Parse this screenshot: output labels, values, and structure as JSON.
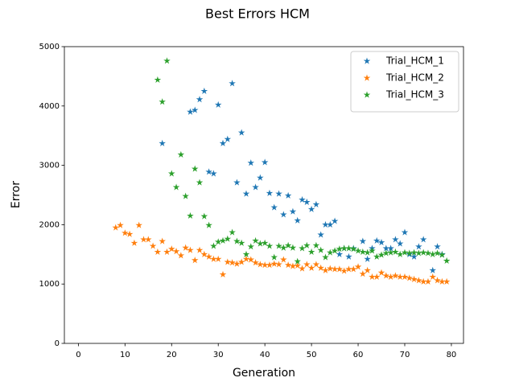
{
  "chart_data": {
    "type": "scatter",
    "title": "Best Errors HCM",
    "x_label": "Generation",
    "y_label": "Error",
    "xlim": [
      -3,
      82.6
    ],
    "ylim": [
      0,
      5000
    ],
    "xticks": [
      0,
      10,
      20,
      30,
      40,
      50,
      60,
      70,
      80
    ],
    "yticks": [
      0,
      1000,
      2000,
      3000,
      4000,
      5000
    ],
    "legend": "upper right",
    "marker": "star",
    "series": [
      {
        "name": "Trial_HCM_1",
        "color": "#1f77b4",
        "x": [
          18,
          24,
          25,
          26,
          27,
          28,
          29,
          30,
          31,
          32,
          33,
          34,
          35,
          36,
          37,
          38,
          39,
          40,
          41,
          42,
          43,
          44,
          45,
          46,
          47,
          48,
          49,
          50,
          51,
          52,
          53,
          54,
          55,
          56,
          57,
          58,
          59,
          61,
          62,
          63,
          64,
          65,
          66,
          67,
          68,
          69,
          70,
          71,
          72,
          73,
          74,
          76,
          77,
          78
        ],
        "values": [
          3370,
          3900,
          3930,
          4110,
          4250,
          2890,
          2860,
          4020,
          3370,
          3440,
          4380,
          2710,
          3550,
          2520,
          3040,
          2630,
          2790,
          3050,
          2530,
          2290,
          2520,
          2170,
          2490,
          2220,
          2070,
          2420,
          2380,
          2260,
          2340,
          1830,
          2000,
          2000,
          2060,
          1500,
          1600,
          1460,
          1600,
          1720,
          1420,
          1600,
          1730,
          1700,
          1600,
          1600,
          1750,
          1680,
          1870,
          1500,
          1460,
          1630,
          1750,
          1230,
          1630,
          1500
        ]
      },
      {
        "name": "Trial_HCM_2",
        "color": "#ff7f0e",
        "x": [
          8,
          9,
          10,
          11,
          12,
          13,
          14,
          15,
          16,
          17,
          18,
          19,
          20,
          21,
          22,
          23,
          24,
          25,
          26,
          27,
          28,
          29,
          30,
          31,
          32,
          33,
          34,
          35,
          36,
          37,
          38,
          39,
          40,
          41,
          42,
          43,
          44,
          45,
          46,
          47,
          48,
          49,
          50,
          51,
          52,
          53,
          54,
          55,
          56,
          57,
          58,
          59,
          60,
          61,
          62,
          63,
          64,
          65,
          66,
          67,
          68,
          69,
          70,
          71,
          72,
          73,
          74,
          75,
          76,
          77,
          78,
          79
        ],
        "values": [
          1950,
          1990,
          1860,
          1840,
          1690,
          1990,
          1750,
          1750,
          1640,
          1540,
          1720,
          1540,
          1590,
          1550,
          1480,
          1610,
          1570,
          1400,
          1570,
          1500,
          1460,
          1420,
          1420,
          1160,
          1370,
          1360,
          1340,
          1370,
          1420,
          1410,
          1360,
          1330,
          1320,
          1320,
          1340,
          1330,
          1410,
          1320,
          1300,
          1310,
          1260,
          1330,
          1270,
          1330,
          1270,
          1230,
          1260,
          1250,
          1250,
          1220,
          1250,
          1250,
          1290,
          1170,
          1230,
          1120,
          1120,
          1190,
          1140,
          1120,
          1140,
          1120,
          1120,
          1100,
          1080,
          1060,
          1040,
          1040,
          1120,
          1060,
          1040,
          1040
        ]
      },
      {
        "name": "Trial_HCM_3",
        "color": "#2ca02c",
        "x": [
          17,
          18,
          19,
          20,
          21,
          22,
          23,
          24,
          25,
          26,
          27,
          28,
          29,
          30,
          31,
          32,
          33,
          34,
          35,
          36,
          37,
          38,
          39,
          40,
          41,
          42,
          43,
          44,
          45,
          46,
          47,
          48,
          49,
          50,
          51,
          52,
          53,
          54,
          55,
          56,
          57,
          58,
          59,
          60,
          61,
          62,
          63,
          64,
          65,
          66,
          67,
          68,
          69,
          70,
          71,
          72,
          73,
          74,
          75,
          76,
          77,
          78,
          79
        ],
        "values": [
          4440,
          4070,
          4760,
          2860,
          2630,
          3180,
          2480,
          2150,
          2940,
          2710,
          2140,
          1990,
          1640,
          1710,
          1730,
          1760,
          1870,
          1720,
          1690,
          1500,
          1630,
          1730,
          1680,
          1690,
          1640,
          1450,
          1640,
          1610,
          1650,
          1610,
          1380,
          1600,
          1650,
          1540,
          1650,
          1570,
          1450,
          1530,
          1560,
          1590,
          1600,
          1600,
          1590,
          1560,
          1540,
          1530,
          1560,
          1460,
          1490,
          1520,
          1530,
          1540,
          1500,
          1530,
          1520,
          1530,
          1520,
          1530,
          1520,
          1500,
          1520,
          1490,
          1390
        ]
      }
    ]
  }
}
